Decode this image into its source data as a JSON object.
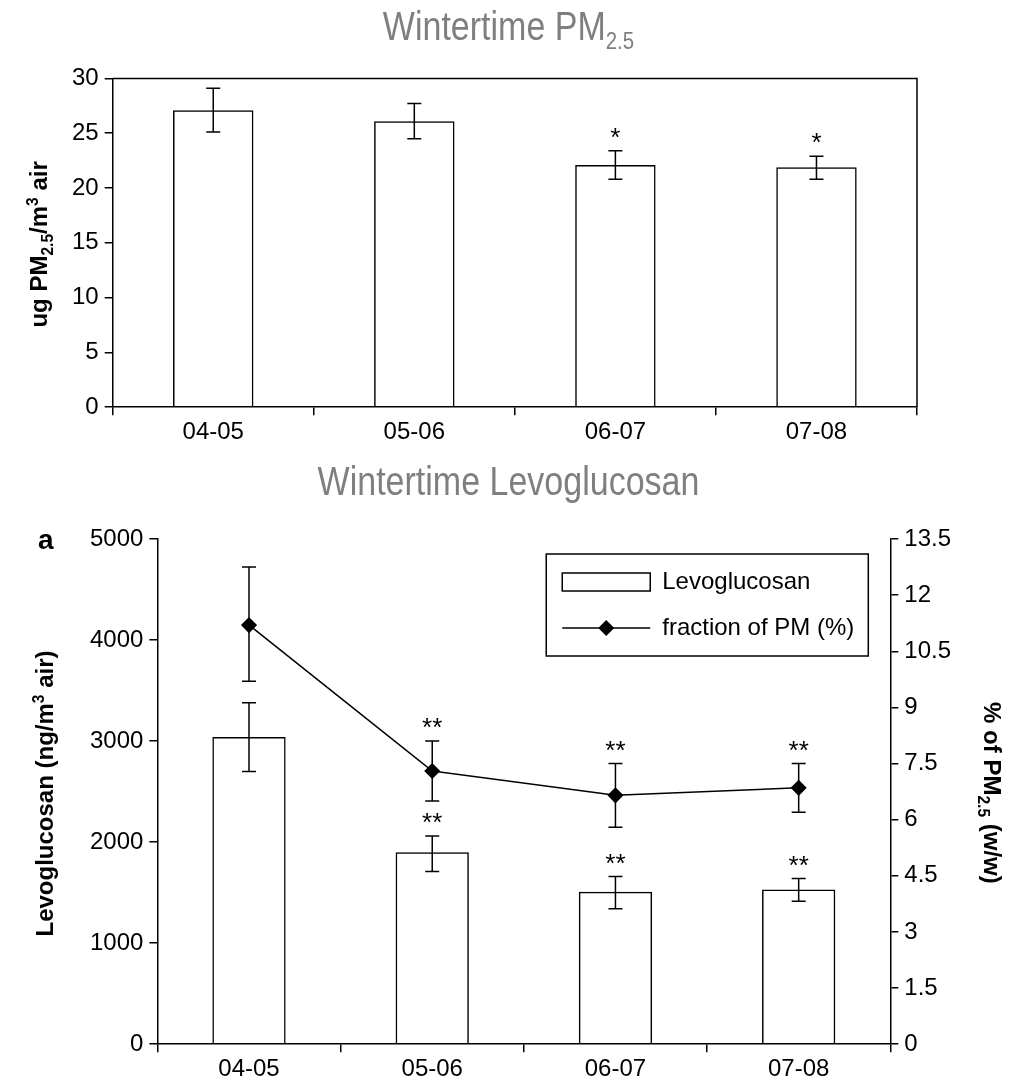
{
  "chart_data": [
    {
      "type": "bar",
      "title": "Wintertime PM$_{2.5}$",
      "ylabel": "ug PM$_{2.5}$/m$^{3}$ air",
      "categories": [
        "04-05",
        "05-06",
        "06-07",
        "07-08"
      ],
      "values": [
        27.1,
        26.1,
        22.1,
        21.9
      ],
      "errors": [
        [
          25.1,
          29.1
        ],
        [
          24.5,
          27.7
        ],
        [
          20.8,
          23.4
        ],
        [
          20.8,
          22.9
        ]
      ],
      "color": "#000000",
      "ylim": [
        0,
        30
      ],
      "yticks": [
        0,
        5,
        10,
        15,
        20,
        25,
        30
      ],
      "grid": false,
      "legend": false,
      "annotations": [
        {
          "text": "*",
          "x": "06-07",
          "y": 22.1
        },
        {
          "text": "*",
          "x": "07-08",
          "y": 21.9
        }
      ]
    },
    {
      "type": "bar",
      "title": "Wintertime Levoglucosan",
      "ylabel": "Levoglucosan (ng/m$^{3}$ air)",
      "y2label": "% of PM$_{2.5}$ (w/w)",
      "categories": [
        "04-05",
        "05-06",
        "06-07",
        "07-08"
      ],
      "series": [
        {
          "name": "Levoglucosan",
          "type": "bar",
          "color": "#000000",
          "values": [
            3040,
            1900,
            1510,
            1530
          ],
          "errors": [
            [
              2700,
              3380
            ],
            [
              1710,
              2060
            ],
            [
              1340,
              1660
            ],
            [
              1415,
              1640
            ]
          ]
        },
        {
          "name": "fraction of PM (%)",
          "type": "line",
          "axis": "y2",
          "color": "#000000",
          "values": [
            11.2,
            7.3,
            6.65,
            6.85
          ],
          "errors": [
            [
              9.7,
              12.75
            ],
            [
              6.5,
              8.1
            ],
            [
              5.8,
              7.5
            ],
            [
              6.2,
              7.5
            ]
          ]
        }
      ],
      "ylim": [
        0,
        5000
      ],
      "yticks": [
        0,
        1000,
        2000,
        3000,
        4000,
        5000
      ],
      "y2lim": [
        0,
        13.5
      ],
      "y2ticks": [
        0,
        1.5,
        3,
        4.5,
        6,
        7.5,
        9,
        10.5,
        12,
        13.5
      ],
      "grid": false,
      "legend": "top right",
      "marker": "diamond",
      "annotations": [
        "a",
        {
          "text": "**",
          "x": "05-06",
          "y": 2704
        },
        {
          "text": "**",
          "x": "06-07",
          "y": 2463
        },
        {
          "text": "**",
          "x": "07-08",
          "y": 2537
        },
        {
          "text": "**",
          "x": "05-06",
          "y": 1900
        },
        {
          "text": "**",
          "x": "06-07",
          "y": 1510
        },
        {
          "text": "**",
          "x": "07-08",
          "y": 1530
        }
      ]
    }
  ]
}
